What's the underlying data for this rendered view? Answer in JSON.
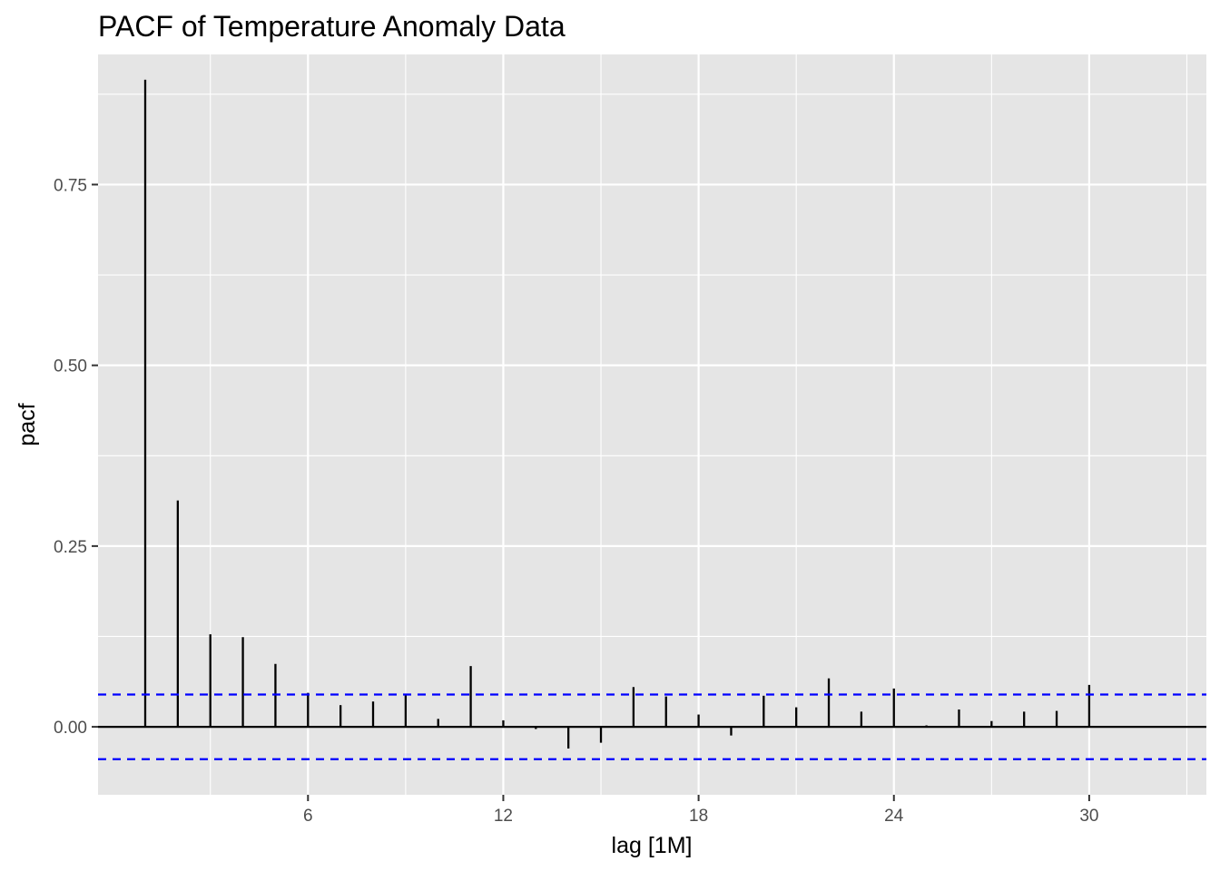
{
  "chart_data": {
    "type": "bar",
    "title": "PACF of Temperature Anomaly Data",
    "xlabel": "lag [1M]",
    "ylabel": "pacf",
    "x": [
      1,
      2,
      3,
      4,
      5,
      6,
      7,
      8,
      9,
      10,
      11,
      12,
      13,
      14,
      15,
      16,
      17,
      18,
      19,
      20,
      21,
      22,
      23,
      24,
      25,
      26,
      27,
      28,
      29,
      30
    ],
    "values": [
      0.895,
      0.313,
      0.128,
      0.124,
      0.087,
      0.047,
      0.03,
      0.035,
      0.045,
      0.011,
      0.084,
      0.009,
      -0.003,
      -0.03,
      -0.022,
      0.055,
      0.042,
      0.017,
      -0.012,
      0.043,
      0.027,
      0.067,
      0.021,
      0.053,
      0.002,
      0.024,
      0.008,
      0.021,
      0.022,
      0.058
    ],
    "xlim": [
      -0.45,
      33.6
    ],
    "ylim": [
      -0.094,
      0.93
    ],
    "x_ticks": [
      6,
      12,
      18,
      24,
      30
    ],
    "x_tick_labels": [
      "6",
      "12",
      "18",
      "24",
      "30"
    ],
    "y_ticks": [
      0,
      0.25,
      0.5,
      0.75
    ],
    "y_tick_labels": [
      "0.00",
      "0.25",
      "0.50",
      "0.75"
    ],
    "confidence_bound": 0.0447,
    "grid": true,
    "legend": "none",
    "colors": {
      "panel_background": "#e5e5e5",
      "grid": "#ffffff",
      "bars": "#000000",
      "confidence_lines": "#0000ff",
      "zero_line": "#000000",
      "tick_label": "#4d4d4d",
      "tick_mark": "#333333"
    }
  }
}
